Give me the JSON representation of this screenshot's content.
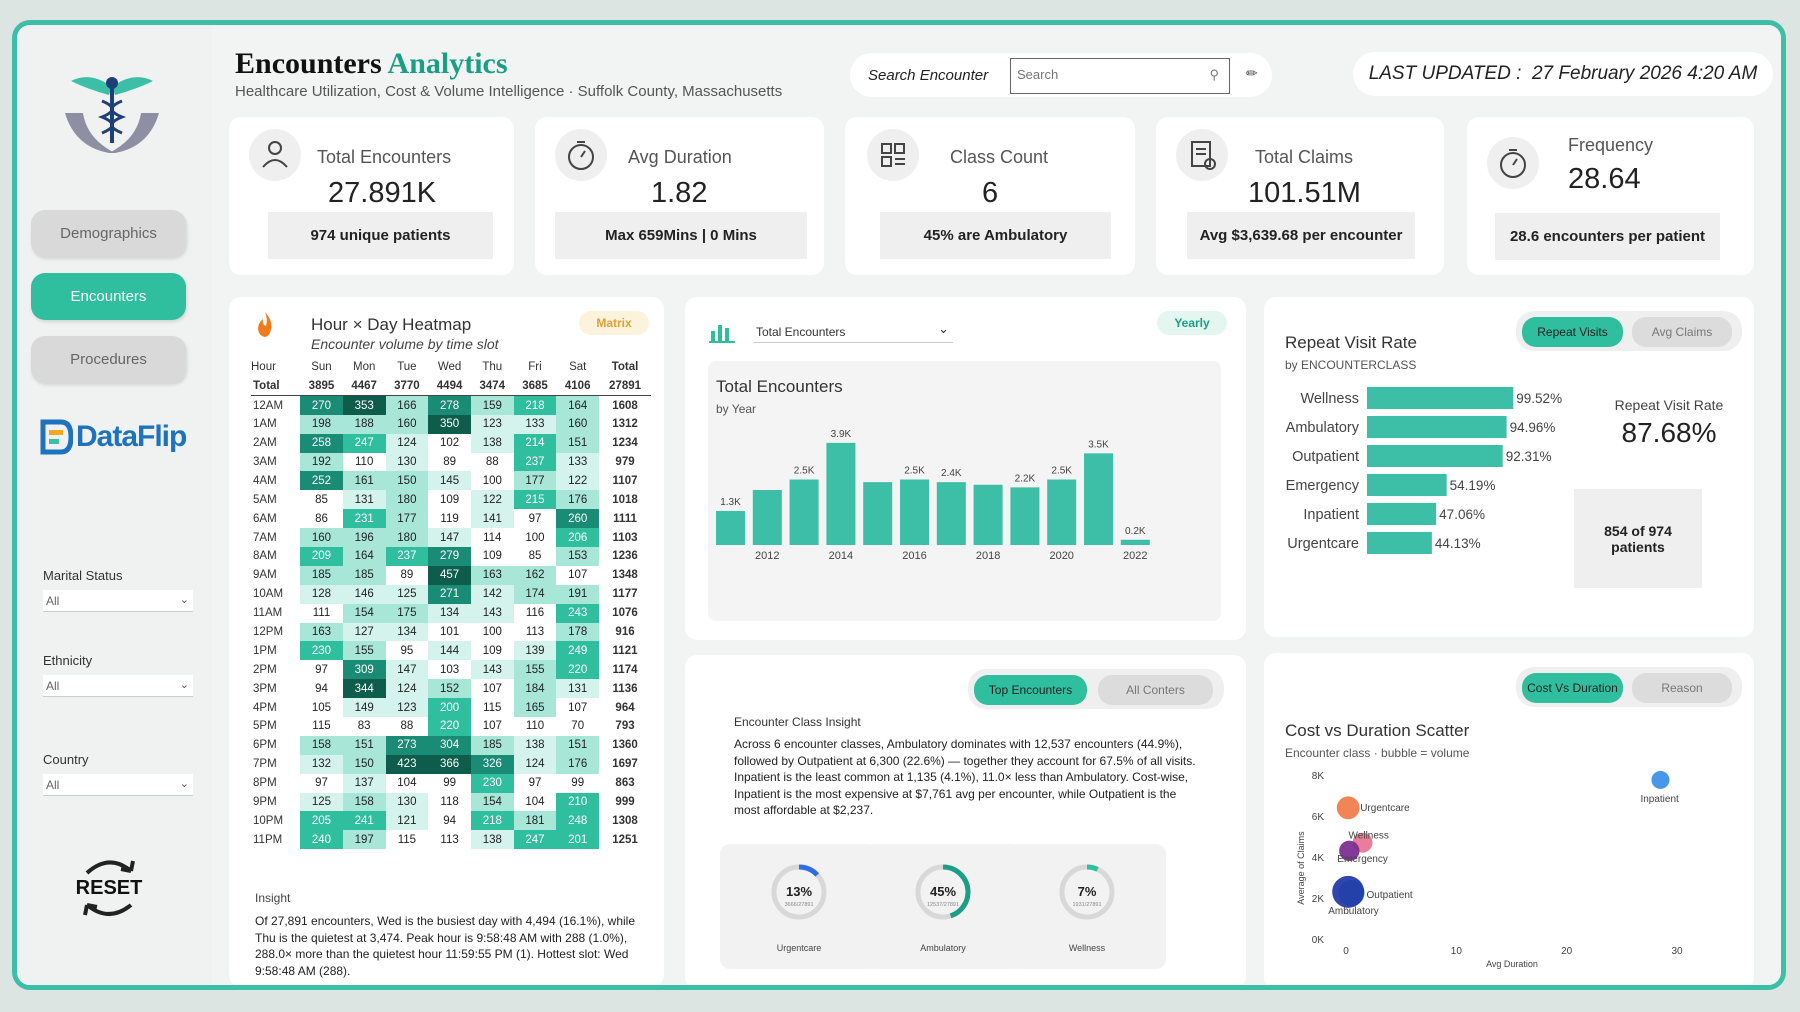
{
  "header": {
    "title_a": "Encounters",
    "title_b": "Analytics",
    "subtitle": "Healthcare Utilization, Cost & Volume Intelligence · Suffolk County, Massachusetts",
    "search_label": "Search Encounter",
    "search_placeholder": "Search",
    "updated_label": "LAST UPDATED :",
    "updated_value": "27 February 2026 4:20 AM"
  },
  "nav": {
    "items": [
      {
        "label": "Demographics",
        "active": false
      },
      {
        "label": "Encounters",
        "active": true
      },
      {
        "label": "Procedures",
        "active": false
      }
    ],
    "brand": "DataFlip",
    "reset": "RESET"
  },
  "filters": [
    {
      "label": "Marital Status",
      "value": "All"
    },
    {
      "label": "Ethnicity",
      "value": "All"
    },
    {
      "label": "Country",
      "value": "All"
    }
  ],
  "kpis": [
    {
      "title": "Total Encounters",
      "value": "27.891K",
      "sub": "974 unique patients",
      "icon": "patients-icon"
    },
    {
      "title": "Avg Duration",
      "value": "1.82",
      "sub": "Max 659Mins | 0 Mins",
      "icon": "stopwatch-icon"
    },
    {
      "title": "Class Count",
      "value": "6",
      "sub": "45% are Ambulatory",
      "icon": "grid-icon"
    },
    {
      "title": "Total Claims",
      "value": "101.51M",
      "sub": "Avg $3,639.68 per encounter",
      "icon": "claims-icon"
    },
    {
      "title": "Frequency",
      "value": "28.64",
      "sub": "28.6 encounters per patient",
      "icon": "stopwatch-icon"
    }
  ],
  "heatmap": {
    "title": "Hour × Day Heatmap",
    "subtitle": "Encounter volume by time slot",
    "badge": "Matrix",
    "columns": [
      "Hour",
      "Sun",
      "Mon",
      "Tue",
      "Wed",
      "Thu",
      "Fri",
      "Sat",
      "Total"
    ],
    "total_row": [
      "Total",
      "3895",
      "4467",
      "3770",
      "4494",
      "3474",
      "3685",
      "4106",
      "27891"
    ],
    "rows": [
      [
        "12AM",
        270,
        353,
        166,
        278,
        159,
        218,
        164,
        1608
      ],
      [
        "1AM",
        198,
        188,
        160,
        350,
        123,
        133,
        160,
        1312
      ],
      [
        "2AM",
        258,
        247,
        124,
        102,
        138,
        214,
        151,
        1234
      ],
      [
        "3AM",
        192,
        110,
        130,
        89,
        88,
        237,
        133,
        979
      ],
      [
        "4AM",
        252,
        161,
        150,
        145,
        100,
        177,
        122,
        1107
      ],
      [
        "5AM",
        85,
        131,
        180,
        109,
        122,
        215,
        176,
        1018
      ],
      [
        "6AM",
        86,
        231,
        177,
        119,
        141,
        97,
        260,
        1111
      ],
      [
        "7AM",
        160,
        196,
        180,
        147,
        114,
        100,
        206,
        1103
      ],
      [
        "8AM",
        209,
        164,
        237,
        279,
        109,
        85,
        153,
        1236
      ],
      [
        "9AM",
        185,
        185,
        89,
        457,
        163,
        162,
        107,
        1348
      ],
      [
        "10AM",
        128,
        146,
        125,
        271,
        142,
        174,
        191,
        1177
      ],
      [
        "11AM",
        111,
        154,
        175,
        134,
        143,
        116,
        243,
        1076
      ],
      [
        "12PM",
        163,
        127,
        134,
        101,
        100,
        113,
        178,
        916
      ],
      [
        "1PM",
        230,
        155,
        95,
        144,
        109,
        139,
        249,
        1121
      ],
      [
        "2PM",
        97,
        309,
        147,
        103,
        143,
        155,
        220,
        1174
      ],
      [
        "3PM",
        94,
        344,
        124,
        152,
        107,
        184,
        131,
        1136
      ],
      [
        "4PM",
        105,
        149,
        123,
        200,
        115,
        165,
        107,
        964
      ],
      [
        "5PM",
        115,
        83,
        88,
        220,
        107,
        110,
        70,
        793
      ],
      [
        "6PM",
        158,
        151,
        273,
        304,
        185,
        138,
        151,
        1360
      ],
      [
        "7PM",
        132,
        150,
        423,
        366,
        326,
        124,
        176,
        1697
      ],
      [
        "8PM",
        97,
        137,
        104,
        99,
        230,
        97,
        99,
        863
      ],
      [
        "9PM",
        125,
        158,
        130,
        118,
        154,
        104,
        210,
        999
      ],
      [
        "10PM",
        205,
        241,
        121,
        94,
        218,
        181,
        248,
        1308
      ],
      [
        "11PM",
        240,
        197,
        115,
        113,
        138,
        247,
        201,
        1251
      ]
    ],
    "insight_label": "Insight",
    "insight_text": "Of 27,891 encounters, Wed is the busiest day with 4,494 (16.1%), while Thu is the quietest at 3,474. Peak hour is 9:58:48 AM with 288 (1.0%), 288.0× more than the quietest hour 11:59:55 PM (1). Hottest slot: Wed 9:58:48 AM (288)."
  },
  "yearly": {
    "dropdown": "Total Encounters",
    "badge": "Yearly",
    "title": "Total Encounters",
    "subtitle": "by Year"
  },
  "chart_data": [
    {
      "type": "bar",
      "title": "Total Encounters",
      "subtitle": "by Year",
      "categories": [
        "2011",
        "2012",
        "2013",
        "2014",
        "2015",
        "2016",
        "2017",
        "2018",
        "2019",
        "2020",
        "2021",
        "2022"
      ],
      "values": [
        1.3,
        2.1,
        2.5,
        3.9,
        2.4,
        2.5,
        2.4,
        2.3,
        2.2,
        2.5,
        3.5,
        0.2
      ],
      "data_labels": [
        "1.3K",
        "",
        "2.5K",
        "3.9K",
        "",
        "2.5K",
        "2.4K",
        "",
        "2.2K",
        "2.5K",
        "3.5K",
        "0.2K"
      ],
      "x_ticks": [
        "2012",
        "2014",
        "2016",
        "2018",
        "2020",
        "2022"
      ],
      "ylim": [
        0,
        4.2
      ],
      "color": "#3dbfa7"
    },
    {
      "type": "bar",
      "orientation": "horizontal",
      "title": "Repeat Visit Rate",
      "subtitle": "by ENCOUNTERCLASS",
      "categories": [
        "Wellness",
        "Ambulatory",
        "Outpatient",
        "Emergency",
        "Inpatient",
        "Urgentcare"
      ],
      "values": [
        99.52,
        94.96,
        92.31,
        54.19,
        47.06,
        44.13
      ],
      "data_labels": [
        "99.52%",
        "94.96%",
        "92.31%",
        "54.19%",
        "47.06%",
        "44.13%"
      ],
      "xlim": [
        0,
        100
      ],
      "color": "#3dbfa7"
    },
    {
      "type": "scatter",
      "title": "Cost vs Duration Scatter",
      "subtitle": "Encounter class · bubble = volume",
      "xlabel": "Avg Duration",
      "ylabel": "Average of Claims",
      "xlim": [
        0,
        30
      ],
      "ylim": [
        0,
        8000
      ],
      "x_ticks": [
        "0",
        "10",
        "20",
        "30"
      ],
      "y_ticks": [
        "0K",
        "2K",
        "4K",
        "6K",
        "8K"
      ],
      "points": [
        {
          "label": "Inpatient",
          "x": 28.5,
          "y": 7761,
          "volume": 1135,
          "color": "#3a8ee6"
        },
        {
          "label": "Urgentcare",
          "x": 0.2,
          "y": 6400,
          "volume": 3666,
          "color": "#f07b47"
        },
        {
          "label": "Wellness",
          "x": 1.5,
          "y": 4700,
          "volume": 1931,
          "color": "#e8738f"
        },
        {
          "label": "Emergency",
          "x": 0.3,
          "y": 4300,
          "volume": 2200,
          "color": "#7a2a8e"
        },
        {
          "label": "Outpatient",
          "x": 0.5,
          "y": 2237,
          "volume": 6300,
          "color": "#3dbfa7"
        },
        {
          "label": "Ambulatory",
          "x": 0.2,
          "y": 2300,
          "volume": 12537,
          "color": "#1f35a8"
        }
      ]
    }
  ],
  "repeat": {
    "tab_on": "Repeat Visits",
    "tab_off": "Avg Claims",
    "title": "Repeat Visit Rate",
    "subtitle": "by ENCOUNTERCLASS",
    "side_label": "Repeat Visit Rate",
    "side_value": "87.68%",
    "side_note": "854 of 974 patients"
  },
  "insight": {
    "tab_on": "Top Encounters",
    "tab_off": "All Conters",
    "title": "Encounter Class Insight",
    "text": "Across 6 encounter classes, Ambulatory dominates with 12,537 encounters (44.9%), followed by Outpatient at 6,300 (22.6%) — together they account for 67.5% of all visits. Inpatient is the least common at 1,135 (4.1%), 11.0× less than Ambulatory. Cost-wise, Inpatient is the most expensive at $7,761 avg per encounter, while Outpatient is the most affordable at $2,237.",
    "donuts": [
      {
        "pct": "13%",
        "frac": 0.13,
        "detail": "3666/27891",
        "label": "Urgentcare",
        "color": "#2d6ee6"
      },
      {
        "pct": "45%",
        "frac": 0.45,
        "detail": "12537/27891",
        "label": "Ambulatory",
        "color": "#1a9e86"
      },
      {
        "pct": "7%",
        "frac": 0.07,
        "detail": "1931/27891",
        "label": "Wellness",
        "color": "#2fbf9f"
      }
    ]
  },
  "scatter": {
    "tab_on": "Cost Vs Duration",
    "tab_off": "Reason",
    "title": "Cost vs Duration Scatter",
    "subtitle": "Encounter class · bubble = volume"
  },
  "colors": {
    "accent": "#2fbf9f",
    "frame": "#3dbfa7",
    "title_accent": "#1a9e86"
  }
}
